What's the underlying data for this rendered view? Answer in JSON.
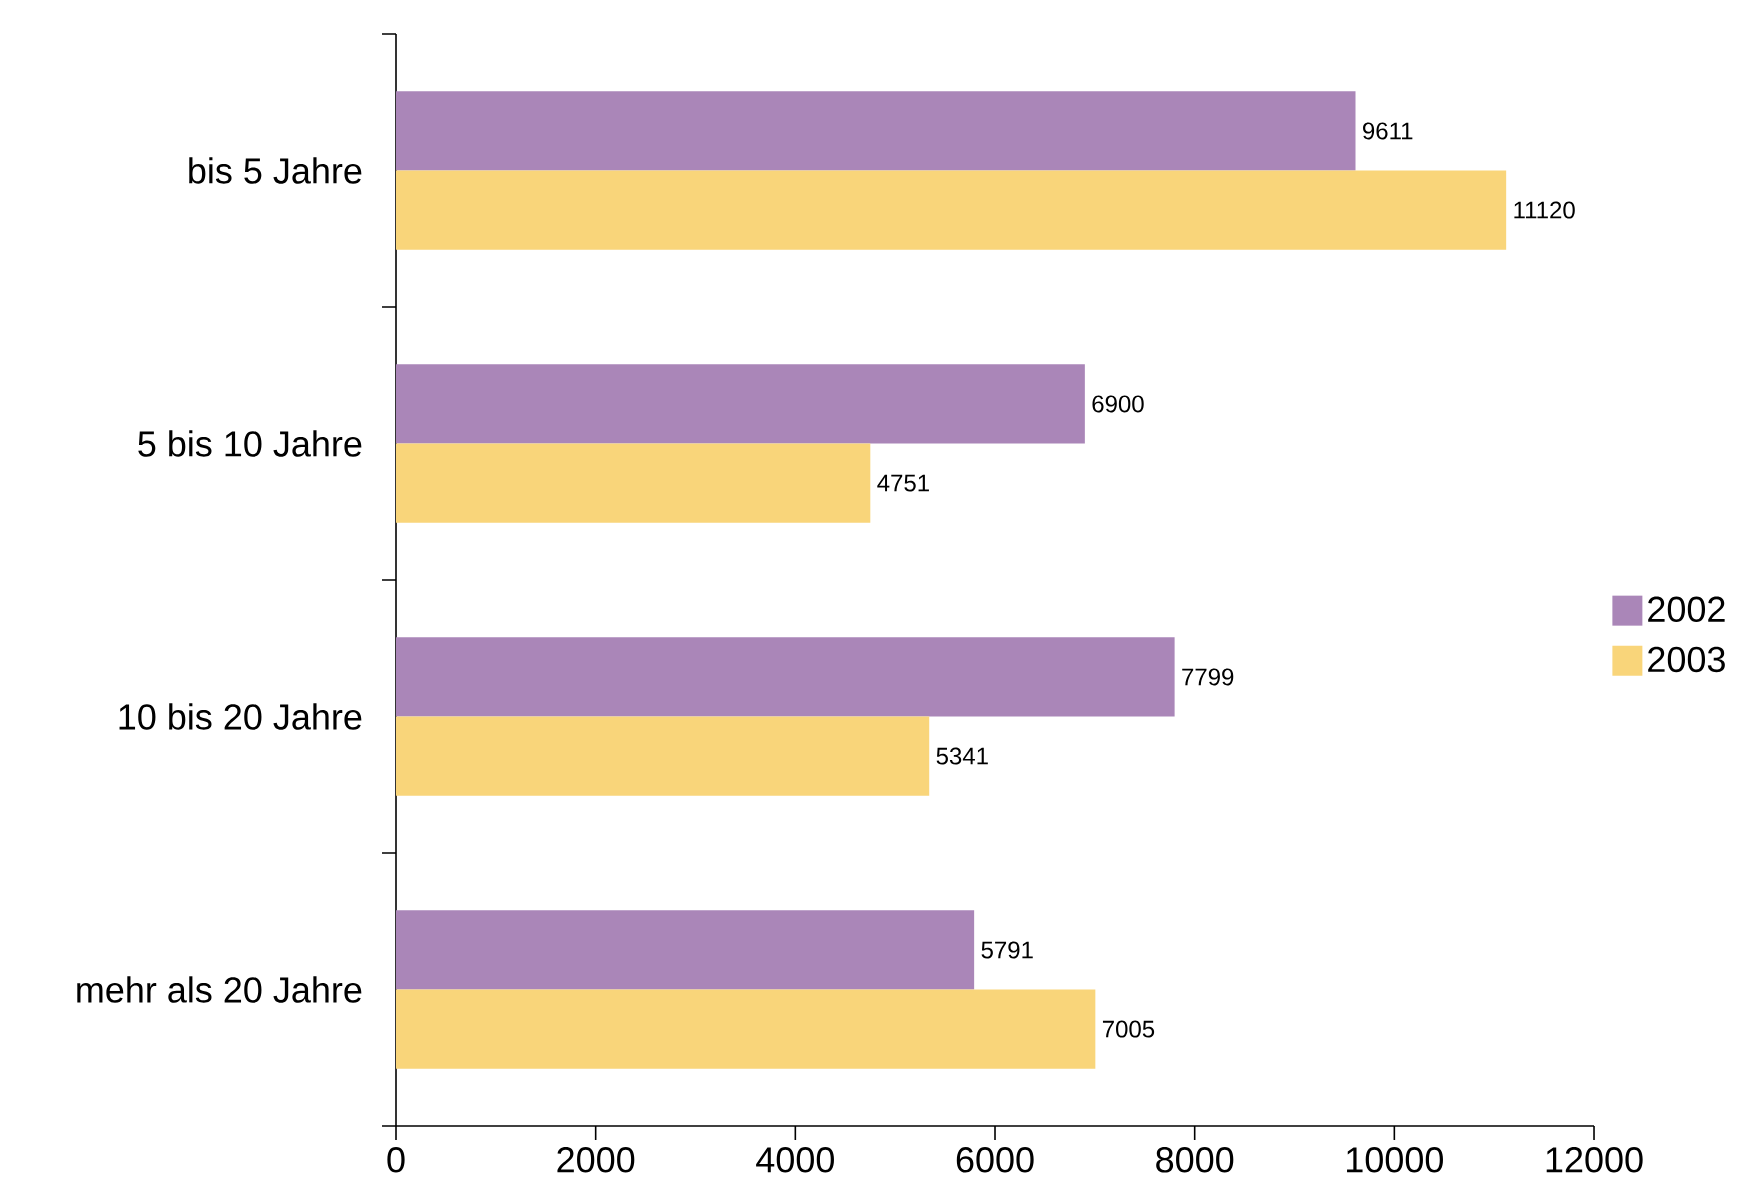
{
  "chart_data": {
    "type": "bar",
    "orientation": "horizontal",
    "categories": [
      "bis 5 Jahre",
      "5 bis 10 Jahre",
      "10 bis 20 Jahre",
      "mehr als 20 Jahre"
    ],
    "series": [
      {
        "name": "2002",
        "color": "#aa86b8",
        "values": [
          9611,
          6900,
          7799,
          5791
        ]
      },
      {
        "name": "2003",
        "color": "#f9d57a",
        "values": [
          11120,
          4751,
          5341,
          7005
        ]
      }
    ],
    "xlim": [
      0,
      12000
    ],
    "xticks": [
      0,
      2000,
      4000,
      6000,
      8000,
      10000,
      12000
    ],
    "data_labels": true,
    "legend": "right"
  }
}
